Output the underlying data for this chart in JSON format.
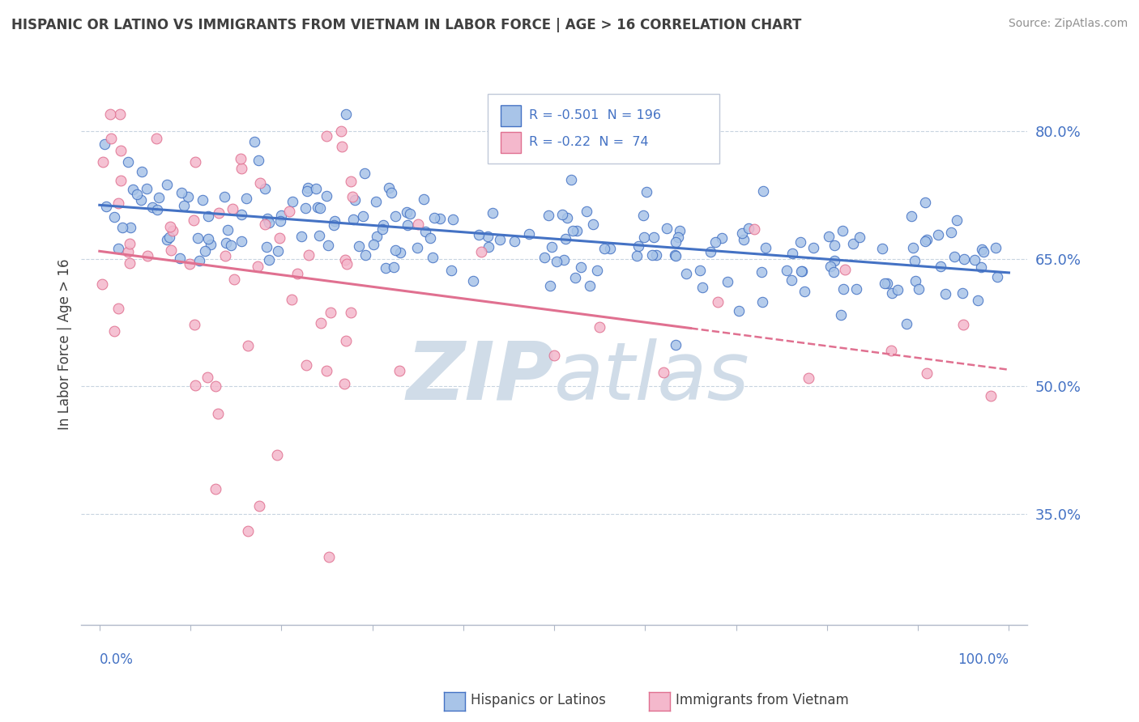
{
  "title": "HISPANIC OR LATINO VS IMMIGRANTS FROM VIETNAM IN LABOR FORCE | AGE > 16 CORRELATION CHART",
  "source": "Source: ZipAtlas.com",
  "ylabel": "In Labor Force | Age > 16",
  "legend_label_blue": "Hispanics or Latinos",
  "legend_label_pink": "Immigrants from Vietnam",
  "R_blue": -0.501,
  "N_blue": 196,
  "R_pink": -0.22,
  "N_pink": 74,
  "color_blue_fill": "#a8c4e8",
  "color_blue_edge": "#4472c4",
  "color_pink_fill": "#f4b8cc",
  "color_pink_edge": "#e07090",
  "color_text_blue": "#4472c4",
  "ytick_labels": [
    "35.0%",
    "50.0%",
    "65.0%",
    "80.0%"
  ],
  "ytick_values": [
    0.35,
    0.5,
    0.65,
    0.8
  ],
  "ylim": [
    0.22,
    0.88
  ],
  "xlim": [
    -0.02,
    1.02
  ],
  "watermark_zip": "ZIP",
  "watermark_atlas": "atlas",
  "watermark_color": "#d0dce8",
  "grid_color": "#c8d4e0",
  "title_color": "#404040",
  "source_color": "#909090"
}
